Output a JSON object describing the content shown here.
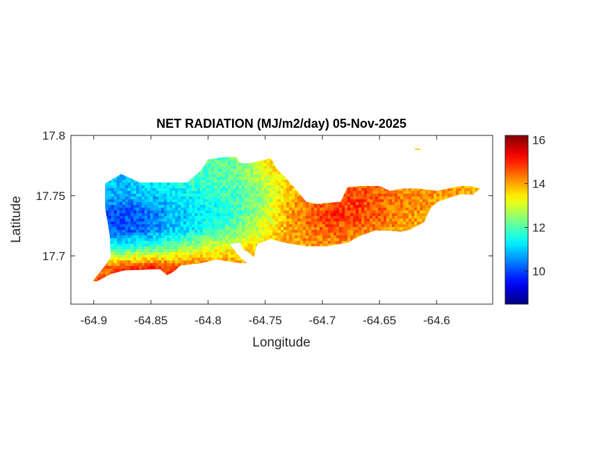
{
  "chart_data": {
    "type": "heatmap",
    "title": "NET RADIATION (MJ/m2/day) 05-Nov-2025",
    "xlabel": "Longitude",
    "ylabel": "Latitude",
    "xlim": [
      -64.92,
      -64.551
    ],
    "ylim": [
      17.66,
      17.8
    ],
    "xticks": [
      -64.9,
      -64.85,
      -64.8,
      -64.75,
      -64.7,
      -64.65,
      -64.6
    ],
    "xtick_labels": [
      "-64.9",
      "-64.85",
      "-64.8",
      "-64.75",
      "-64.7",
      "-64.65",
      "-64.6"
    ],
    "yticks": [
      17.7,
      17.75,
      17.8
    ],
    "ytick_labels": [
      "17.7",
      "17.75",
      "17.8"
    ],
    "colormap": "jet",
    "colorbar": {
      "clim": [
        8.5,
        16.2
      ],
      "ticks": [
        10,
        12,
        14,
        16
      ],
      "tick_labels": [
        "10",
        "12",
        "14",
        "16"
      ],
      "placement": "right"
    },
    "grid": false,
    "grid_lon": [
      -64.89,
      -64.87,
      -64.85,
      -64.83,
      -64.81,
      -64.79,
      -64.77,
      -64.75,
      -64.73,
      -64.71,
      -64.69,
      -64.67,
      -64.65,
      -64.63,
      -64.61,
      -64.59,
      -64.57
    ],
    "grid_lat": [
      17.78,
      17.765,
      17.75,
      17.735,
      17.72,
      17.705,
      17.69
    ],
    "values": [
      [
        11,
        11,
        11,
        11.5,
        11.8,
        12,
        12.5,
        13.5,
        14,
        14,
        14,
        14,
        14,
        14,
        14,
        14,
        14
      ],
      [
        11,
        11,
        11.2,
        11.5,
        11.8,
        12,
        12.2,
        13,
        13.5,
        14,
        14,
        14.2,
        14.2,
        14,
        14,
        14,
        14
      ],
      [
        10.8,
        10.8,
        11,
        11.2,
        11.5,
        11.8,
        12,
        12.5,
        13.8,
        14.3,
        14.5,
        14.8,
        14.5,
        14.3,
        14.2,
        14,
        14
      ],
      [
        10,
        10,
        10.3,
        10.8,
        11.2,
        11.5,
        12,
        12.8,
        14,
        14.5,
        15,
        14.8,
        14.5,
        14.2,
        14,
        14,
        14
      ],
      [
        10.2,
        10.2,
        10.5,
        11,
        11.5,
        12,
        12.5,
        13.2,
        14,
        14.3,
        14.5,
        14.3,
        14.2,
        14,
        14,
        14,
        14
      ],
      [
        11.8,
        12,
        12.2,
        12.5,
        13,
        13.2,
        13.5,
        13.8,
        14,
        14,
        14,
        14,
        14,
        14,
        14,
        14,
        14
      ],
      [
        14.5,
        15,
        15,
        14.8,
        14.5,
        14.5,
        14.3,
        14,
        14,
        14,
        14,
        14,
        14,
        14,
        14,
        14,
        14
      ]
    ],
    "land_outline": [
      [
        -64.901,
        17.679
      ],
      [
        -64.891,
        17.691
      ],
      [
        -64.885,
        17.699
      ],
      [
        -64.886,
        17.717
      ],
      [
        -64.89,
        17.74
      ],
      [
        -64.89,
        17.76
      ],
      [
        -64.876,
        17.768
      ],
      [
        -64.86,
        17.761
      ],
      [
        -64.836,
        17.761
      ],
      [
        -64.818,
        17.761
      ],
      [
        -64.806,
        17.771
      ],
      [
        -64.8,
        17.78
      ],
      [
        -64.787,
        17.782
      ],
      [
        -64.775,
        17.782
      ],
      [
        -64.772,
        17.777
      ],
      [
        -64.763,
        17.777
      ],
      [
        -64.745,
        17.781
      ],
      [
        -64.739,
        17.771
      ],
      [
        -64.733,
        17.766
      ],
      [
        -64.714,
        17.745
      ],
      [
        -64.705,
        17.743
      ],
      [
        -64.696,
        17.744
      ],
      [
        -64.684,
        17.745
      ],
      [
        -64.678,
        17.757
      ],
      [
        -64.666,
        17.758
      ],
      [
        -64.65,
        17.758
      ],
      [
        -64.641,
        17.754
      ],
      [
        -64.629,
        17.756
      ],
      [
        -64.617,
        17.756
      ],
      [
        -64.599,
        17.754
      ],
      [
        -64.58,
        17.758
      ],
      [
        -64.571,
        17.758
      ],
      [
        -64.562,
        17.756
      ],
      [
        -64.568,
        17.751
      ],
      [
        -64.58,
        17.751
      ],
      [
        -64.599,
        17.745
      ],
      [
        -64.605,
        17.74
      ],
      [
        -64.611,
        17.728
      ],
      [
        -64.623,
        17.722
      ],
      [
        -64.632,
        17.72
      ],
      [
        -64.641,
        17.721
      ],
      [
        -64.654,
        17.721
      ],
      [
        -64.666,
        17.717
      ],
      [
        -64.678,
        17.711
      ],
      [
        -64.696,
        17.708
      ],
      [
        -64.714,
        17.708
      ],
      [
        -64.733,
        17.711
      ],
      [
        -64.745,
        17.714
      ],
      [
        -64.757,
        17.71
      ],
      [
        -64.76,
        17.699
      ],
      [
        -64.766,
        17.704
      ],
      [
        -64.769,
        17.705
      ],
      [
        -64.772,
        17.711
      ],
      [
        -64.781,
        17.71
      ],
      [
        -64.772,
        17.699
      ],
      [
        -64.766,
        17.694
      ],
      [
        -64.772,
        17.694
      ],
      [
        -64.793,
        17.697
      ],
      [
        -64.806,
        17.694
      ],
      [
        -64.824,
        17.692
      ],
      [
        -64.83,
        17.687
      ],
      [
        -64.836,
        17.684
      ],
      [
        -64.842,
        17.689
      ],
      [
        -64.873,
        17.688
      ],
      [
        -64.885,
        17.685
      ],
      [
        -64.897,
        17.679
      ]
    ]
  }
}
